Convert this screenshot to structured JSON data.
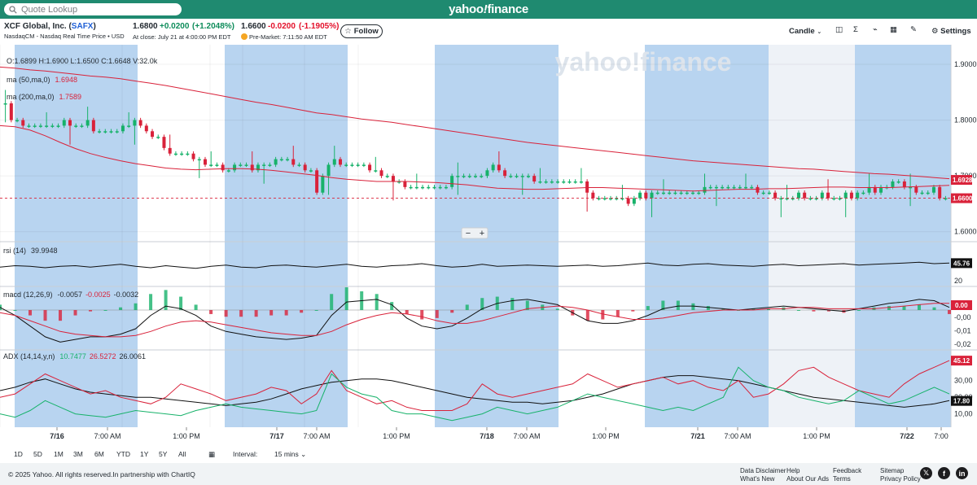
{
  "topbar": {
    "search_placeholder": "Quote Lookup",
    "brand_left": "yahoo",
    "brand_bang": "!",
    "brand_right": "finance"
  },
  "header": {
    "company": "XCF Global, Inc. (",
    "symbol": "SAFX",
    "company_close": ")",
    "exchange": "NasdaqCM - Nasdaq Real Time Price • USD",
    "price": "1.6800",
    "change": "+0.0200",
    "change_pct": "(+1.2048%)",
    "close_label": "At close: July 21 at 4:00:00 PM EDT",
    "pre_price": "1.6600",
    "pre_change": "-0.0200",
    "pre_change_pct": "(-1.1905%)",
    "pre_label": "Pre-Market: 7:11:50 AM EDT",
    "follow_label": "Follow"
  },
  "toolbar": {
    "chart_type": "Candle",
    "settings_label": "Settings"
  },
  "colors": {
    "up": "#17b26a",
    "down": "#d9223a",
    "ma50": "#d9223a",
    "ma200": "#d9223a",
    "session_band": "#b8d4f0",
    "brand_green": "#1f8a70"
  },
  "chart_data": {
    "type": "candlestick",
    "ohlc_label": "O:1.6899   H:1.6900   L:1.6500   C:1.6648   V:32.0k",
    "ma50_label": "ma (50,ma,0)",
    "ma50_value": "1.6948",
    "ma200_label": "ma (200,ma,0)",
    "ma200_value": "1.7589",
    "y_ticks": [
      "1.9000",
      "1.8000",
      "1.7000",
      "1.6000"
    ],
    "ylim": [
      1.585,
      1.935
    ],
    "x_ticks": [
      "7/16",
      "7:00 AM",
      "1:00 PM",
      "7/17",
      "7:00 AM",
      "1:00 PM",
      "7/18",
      "7:00 AM",
      "1:00 PM",
      "7/21",
      "7:00 AM",
      "1:00 PM",
      "7/22",
      "7:00"
    ],
    "price_badges": [
      "1.6928",
      "1.6600"
    ],
    "close_series": [
      1.83,
      1.8,
      1.8,
      1.79,
      1.79,
      1.79,
      1.79,
      1.79,
      1.79,
      1.79,
      1.8,
      1.79,
      1.79,
      1.79,
      1.8,
      1.78,
      1.78,
      1.78,
      1.78,
      1.78,
      1.79,
      1.79,
      1.8,
      1.79,
      1.78,
      1.77,
      1.77,
      1.75,
      1.74,
      1.74,
      1.74,
      1.74,
      1.73,
      1.73,
      1.72,
      1.72,
      1.72,
      1.71,
      1.71,
      1.72,
      1.72,
      1.72,
      1.71,
      1.72,
      1.72,
      1.72,
      1.73,
      1.73,
      1.73,
      1.72,
      1.72,
      1.71,
      1.71,
      1.67,
      1.7,
      1.72,
      1.73,
      1.72,
      1.72,
      1.72,
      1.72,
      1.72,
      1.71,
      1.71,
      1.7,
      1.7,
      1.69,
      1.69,
      1.68,
      1.68,
      1.68,
      1.68,
      1.68,
      1.68,
      1.68,
      1.68,
      1.7,
      1.7,
      1.7,
      1.7,
      1.7,
      1.7,
      1.71,
      1.72,
      1.71,
      1.7,
      1.7,
      1.7,
      1.7,
      1.7,
      1.69,
      1.69,
      1.69,
      1.69,
      1.69,
      1.69,
      1.69,
      1.69,
      1.69,
      1.67,
      1.66,
      1.66,
      1.66,
      1.66,
      1.66,
      1.66,
      1.65,
      1.66,
      1.67,
      1.66,
      1.67,
      1.67,
      1.67,
      1.67,
      1.67,
      1.67,
      1.67,
      1.67,
      1.67,
      1.68,
      1.68,
      1.68,
      1.68,
      1.68,
      1.68,
      1.68,
      1.68,
      1.68,
      1.67,
      1.67,
      1.67,
      1.66,
      1.66,
      1.66,
      1.66,
      1.67,
      1.66,
      1.66,
      1.66,
      1.67,
      1.66,
      1.66,
      1.66,
      1.67,
      1.66,
      1.67,
      1.67,
      1.68,
      1.67,
      1.68,
      1.68,
      1.69,
      1.69,
      1.68,
      1.68,
      1.67,
      1.67,
      1.67,
      1.68,
      1.66,
      1.66
    ],
    "ma200_series": [
      1.895,
      1.893,
      1.89,
      1.888,
      1.885,
      1.882,
      1.879,
      1.877,
      1.874,
      1.87,
      1.866,
      1.862,
      1.857,
      1.852,
      1.847,
      1.842,
      1.837,
      1.832,
      1.828,
      1.823,
      1.818,
      1.813,
      1.81,
      1.806,
      1.802,
      1.799,
      1.796,
      1.792,
      1.788,
      1.784,
      1.78,
      1.776,
      1.772,
      1.768,
      1.764,
      1.76,
      1.757,
      1.754,
      1.751,
      1.748,
      1.745,
      1.742,
      1.739,
      1.736,
      1.733,
      1.73,
      1.727,
      1.725,
      1.723,
      1.721,
      1.719,
      1.717,
      1.715,
      1.713,
      1.712,
      1.71,
      1.708,
      1.706,
      1.704,
      1.703,
      1.701,
      1.699,
      1.697,
      1.695
    ],
    "ma50_series": [
      1.79,
      1.788,
      1.782,
      1.772,
      1.76,
      1.749,
      1.74,
      1.733,
      1.727,
      1.722,
      1.718,
      1.714,
      1.712,
      1.711,
      1.712,
      1.713,
      1.713,
      1.712,
      1.71,
      1.707,
      1.704,
      1.701,
      1.697,
      1.694,
      1.692,
      1.69,
      1.69,
      1.69,
      1.689,
      1.688,
      1.686,
      1.684,
      1.681,
      1.678,
      1.677,
      1.676,
      1.676,
      1.677,
      1.678,
      1.679,
      1.679,
      1.678,
      1.677,
      1.676,
      1.675,
      1.674,
      1.673,
      1.674,
      1.675,
      1.676,
      1.676,
      1.677,
      1.677,
      1.678,
      1.679,
      1.68,
      1.68,
      1.679,
      1.679,
      1.679,
      1.68,
      1.681,
      1.682,
      1.683
    ],
    "rsi_label": "rsi (14)",
    "rsi_value": "39.9948",
    "rsi_badge": "45.76",
    "rsi_tick": "20",
    "macd_label": "macd (12,26,9)",
    "macd_val1": "-0.0057",
    "macd_val2": "-0.0025",
    "macd_val3": "-0.0032",
    "macd_badge": "0.00",
    "macd_ticks": [
      "-0,00",
      "-0,01",
      "-0,02"
    ],
    "adx_label": "ADX (14,14,y,n)",
    "adx_val1": "10.7477",
    "adx_val2": "26.5272",
    "adx_val3": "26.0061",
    "adx_badge1": "45.12",
    "adx_badge2": "17.80",
    "adx_ticks": [
      "30,00",
      "20,00",
      "10,00"
    ],
    "adx_series": [
      24,
      26,
      29,
      31,
      28,
      25,
      23,
      22,
      21,
      20,
      20,
      19,
      18,
      17,
      16,
      15,
      16,
      17,
      19,
      22,
      25,
      27,
      29,
      30,
      31,
      31,
      30,
      28,
      26,
      24,
      22,
      20,
      19,
      18,
      17,
      17,
      16,
      17,
      18,
      20,
      22,
      25,
      28,
      30,
      32,
      33,
      33,
      32,
      31,
      30,
      28,
      26,
      24,
      22,
      20,
      19,
      18,
      17,
      16,
      15,
      14,
      15,
      16,
      18
    ],
    "adx_plus_series": [
      20,
      22,
      28,
      34,
      30,
      26,
      22,
      24,
      20,
      18,
      16,
      20,
      28,
      25,
      22,
      18,
      20,
      22,
      26,
      24,
      16,
      22,
      36,
      24,
      20,
      16,
      18,
      14,
      12,
      12,
      12,
      16,
      28,
      22,
      20,
      22,
      24,
      26,
      28,
      34,
      30,
      26,
      28,
      30,
      32,
      28,
      30,
      26,
      24,
      30,
      20,
      22,
      28,
      36,
      38,
      32,
      28,
      24,
      22,
      20,
      28,
      34,
      38,
      42
    ],
    "adx_minus_series": [
      10,
      8,
      12,
      18,
      14,
      10,
      9,
      8,
      10,
      12,
      11,
      10,
      9,
      12,
      14,
      16,
      14,
      13,
      12,
      11,
      10,
      12,
      34,
      26,
      22,
      20,
      12,
      10,
      10,
      8,
      6,
      8,
      10,
      14,
      12,
      10,
      12,
      14,
      18,
      22,
      20,
      18,
      16,
      14,
      12,
      14,
      12,
      16,
      20,
      38,
      30,
      26,
      24,
      20,
      18,
      16,
      18,
      24,
      20,
      16,
      18,
      22,
      26,
      22
    ],
    "rsi_series": [
      40,
      42,
      41,
      39,
      41,
      42,
      40,
      42,
      44,
      41,
      39,
      42,
      40,
      38,
      41,
      43,
      40,
      39,
      42,
      43,
      41,
      40,
      42,
      44,
      41,
      40,
      42,
      43,
      45,
      42,
      40,
      41,
      44,
      41,
      42,
      43,
      42,
      41,
      42,
      43,
      41,
      42,
      44,
      46,
      43,
      42,
      44,
      45,
      43,
      42,
      41,
      43,
      44,
      42,
      43,
      44,
      45,
      43,
      44,
      45,
      46,
      47,
      45,
      46
    ],
    "macd_series": [
      0.002,
      -0.004,
      -0.012,
      -0.02,
      -0.024,
      -0.022,
      -0.02,
      -0.02,
      -0.018,
      -0.014,
      -0.004,
      0.003,
      0.001,
      -0.004,
      -0.012,
      -0.016,
      -0.018,
      -0.02,
      -0.021,
      -0.022,
      -0.021,
      -0.019,
      -0.004,
      0.006,
      0.007,
      0.008,
      0.004,
      -0.006,
      -0.012,
      -0.014,
      -0.012,
      -0.006,
      0.001,
      0.005,
      0.007,
      0.008,
      0.006,
      0.004,
      -0.002,
      -0.008,
      -0.01,
      -0.01,
      -0.008,
      -0.004,
      0.001,
      0.003,
      0.003,
      0.002,
      0.001,
      0.0,
      0.001,
      0.002,
      0.003,
      0.002,
      0.001,
      0.0,
      -0.001,
      0.001,
      0.003,
      0.005,
      0.006,
      0.008,
      0.007,
      0.002
    ],
    "signal_series": [
      -0.002,
      -0.004,
      -0.008,
      -0.012,
      -0.016,
      -0.018,
      -0.019,
      -0.02,
      -0.02,
      -0.019,
      -0.016,
      -0.012,
      -0.009,
      -0.008,
      -0.009,
      -0.011,
      -0.013,
      -0.015,
      -0.017,
      -0.018,
      -0.019,
      -0.019,
      -0.016,
      -0.011,
      -0.007,
      -0.004,
      -0.002,
      -0.003,
      -0.005,
      -0.008,
      -0.01,
      -0.01,
      -0.008,
      -0.005,
      -0.002,
      0.001,
      0.002,
      0.003,
      0.002,
      0.0,
      -0.003,
      -0.005,
      -0.007,
      -0.007,
      -0.006,
      -0.004,
      -0.002,
      -0.001,
      0.0,
      0.0,
      0.0,
      0.001,
      0.001,
      0.002,
      0.002,
      0.001,
      0.001,
      0.001,
      0.001,
      0.002,
      0.003,
      0.004,
      0.005,
      0.005
    ]
  },
  "ranges": [
    "1D",
    "5D",
    "1M",
    "3M",
    "6M",
    "YTD",
    "1Y",
    "5Y",
    "All"
  ],
  "interval_label": "Interval:",
  "interval_value": "15 mins",
  "footer": {
    "copyright": "© 2025 Yahoo. All rights reserved.In partnership with ChartIQ",
    "disclaimer": "Data Disclaimer",
    "whats_new": "What's New",
    "help": "Help",
    "about_ads": "About Our Ads",
    "feedback": "Feedback",
    "terms": "Terms",
    "sitemap": "Sitemap",
    "privacy": "Privacy Policy"
  }
}
